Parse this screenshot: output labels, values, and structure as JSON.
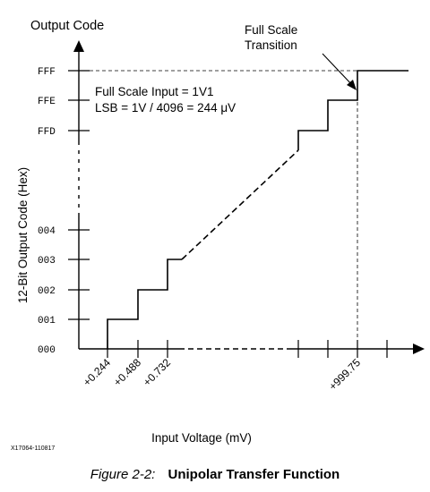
{
  "labels": {
    "output_code": "Output Code",
    "y_axis_title": "12-Bit Output Code (Hex)",
    "x_axis_title": "Input Voltage (mV)",
    "full_scale_line1": "Full Scale",
    "full_scale_line2": "Transition",
    "info_line1": "Full Scale Input = 1V1",
    "info_line2": "LSB = 1V / 4096 = 244 μV",
    "figure_id": "X17064-110817"
  },
  "caption": {
    "label": "Figure 2-2:",
    "title": "Unipolar Transfer Function"
  },
  "y_ticks": [
    "000",
    "001",
    "002",
    "003",
    "004",
    "FFD",
    "FFE",
    "FFF"
  ],
  "x_ticks": [
    "+0.244",
    "+0.488",
    "+0.732",
    "+999.75"
  ],
  "colors": {
    "line": "#000000",
    "background": "#ffffff"
  }
}
